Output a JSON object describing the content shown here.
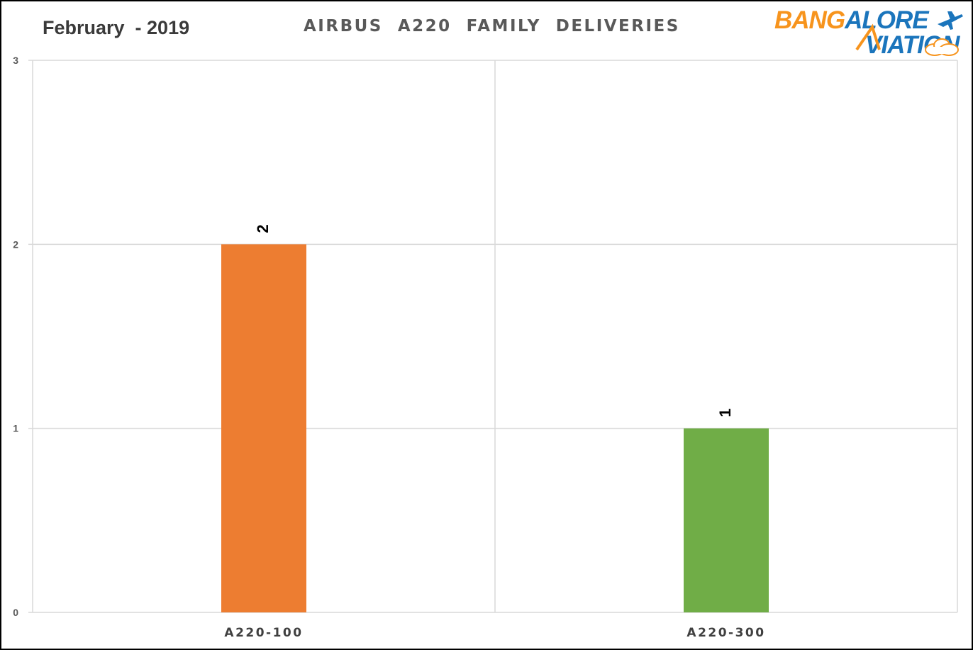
{
  "header": {
    "period": "February  - 2019",
    "logo_line1_orange": "BANG",
    "logo_line1_blue": "ALORE",
    "logo_line2": "VIATION"
  },
  "colors": {
    "bar_a220_100": "#ed7d31",
    "bar_a220_300": "#70ad47",
    "gridline": "#d9d9d9",
    "logo_orange": "#f7941d",
    "logo_blue": "#1b75bc"
  },
  "chart_data": {
    "type": "bar",
    "title": "AIRBUS  A220  FAMILY  DELIVERIES",
    "categories": [
      "A220-100",
      "A220-300"
    ],
    "values": [
      2,
      1
    ],
    "data_labels": [
      "2",
      "1"
    ],
    "bar_colors": [
      "#ed7d31",
      "#70ad47"
    ],
    "ylim": [
      0,
      3
    ],
    "yticks": [
      "0",
      "1",
      "2",
      "3"
    ],
    "grid": true,
    "legend": "none",
    "xlabel": "",
    "ylabel": ""
  }
}
